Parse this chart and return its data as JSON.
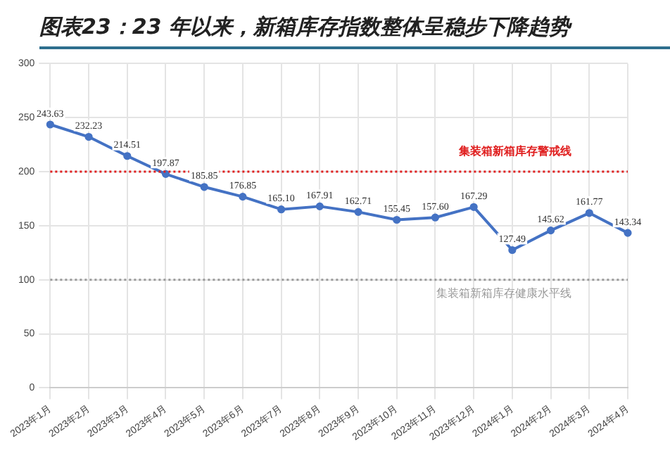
{
  "chart_data": {
    "type": "line",
    "title": "图表23：23 年以来，新箱库存指数整体呈稳步下降趋势",
    "categories": [
      "2023年1月",
      "2023年2月",
      "2023年3月",
      "2023年4月",
      "2023年5月",
      "2023年6月",
      "2023年7月",
      "2023年8月",
      "2023年9月",
      "2023年10月",
      "2023年11月",
      "2023年12月",
      "2024年1月",
      "2024年2月",
      "2024年3月",
      "2024年4月"
    ],
    "series": [
      {
        "color": "#4472c4",
        "values": [
          243.63,
          232.23,
          214.51,
          197.87,
          185.85,
          176.85,
          165.1,
          167.91,
          162.71,
          155.45,
          157.6,
          167.29,
          127.49,
          145.62,
          161.77,
          143.34
        ],
        "value_labels": [
          "243.63",
          "232.23",
          "214.51",
          "197.87",
          "185.85",
          "176.85",
          "165.10",
          "167.91",
          "162.71",
          "155.45",
          "157.60",
          "167.29",
          "127.49",
          "145.62",
          "161.77",
          "143.34"
        ]
      }
    ],
    "ylim": [
      0,
      300
    ],
    "yticks": [
      0,
      50,
      100,
      150,
      200,
      250,
      300
    ],
    "grid": true,
    "legend": false,
    "marker": "circle",
    "line_style": "solid",
    "ref_lines": [
      {
        "axis": "y",
        "value": 200,
        "label": "集装箱新箱库存警戒线",
        "color": "#e02020",
        "line_style": "dotted"
      },
      {
        "axis": "y",
        "value": 100,
        "label": "集装箱新箱库存健康水平线",
        "color": "#999999",
        "line_style": "dotted"
      }
    ]
  }
}
